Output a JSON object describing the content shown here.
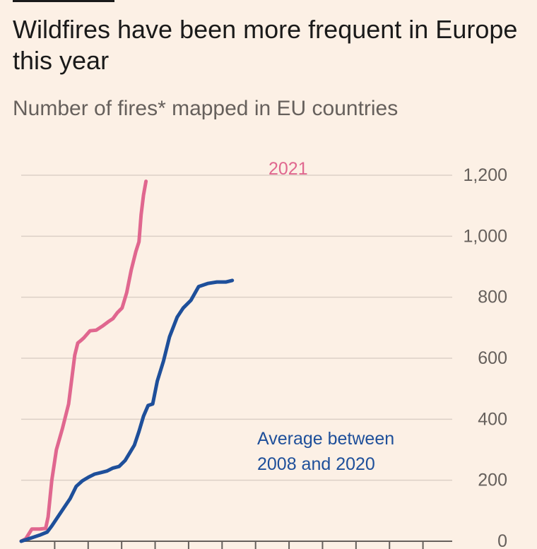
{
  "header": {
    "title": "Wildfires have been more frequent in Europe this year",
    "subtitle": "Number of fires* mapped in EU countries"
  },
  "colors": {
    "background": "#fcf0e5",
    "series_2021": "#e0678f",
    "series_average": "#1e4f9a"
  },
  "chart_data": {
    "type": "line",
    "title": "Wildfires have been more frequent in Europe this year",
    "subtitle": "Number of fires* mapped in EU countries",
    "ylabel": "",
    "xlabel": "",
    "ylim": [
      0,
      1200
    ],
    "yticks": [
      0,
      200,
      400,
      600,
      800,
      1000,
      1200
    ],
    "yticks_labels": [
      "0",
      "200",
      "400",
      "600",
      "800",
      "1,000",
      "1,200"
    ],
    "y_axis_position": "right",
    "grid": true,
    "x_ticks_count": 13,
    "series": [
      {
        "name": "2021",
        "x": [
          0,
          0.15,
          0.35,
          0.6,
          0.8,
          0.88,
          1.0,
          1.15,
          1.35,
          1.55,
          1.75,
          1.85,
          1.95,
          2.05,
          2.25,
          2.45,
          2.65,
          2.85,
          3.0,
          3.15,
          3.3,
          3.45,
          3.6,
          3.75,
          3.85,
          3.92,
          4.0,
          4.08
        ],
        "y": [
          0,
          8,
          40,
          40,
          42,
          80,
          200,
          300,
          370,
          450,
          610,
          650,
          658,
          667,
          690,
          692,
          705,
          720,
          730,
          750,
          765,
          815,
          890,
          950,
          982,
          1070,
          1135,
          1180
        ]
      },
      {
        "name": "Average between 2008 and 2020",
        "x": [
          0,
          0.3,
          0.6,
          0.85,
          1.0,
          1.2,
          1.4,
          1.6,
          1.8,
          2.0,
          2.2,
          2.4,
          2.6,
          2.8,
          3.0,
          3.2,
          3.4,
          3.55,
          3.7,
          3.85,
          4.0,
          4.15,
          4.3,
          4.45,
          4.65,
          4.85,
          5.1,
          5.3,
          5.55,
          5.8,
          6.1,
          6.4,
          6.7,
          6.9
        ],
        "y": [
          0,
          10,
          20,
          30,
          50,
          80,
          110,
          140,
          180,
          198,
          210,
          220,
          225,
          230,
          240,
          245,
          265,
          290,
          315,
          360,
          410,
          445,
          450,
          525,
          590,
          670,
          735,
          765,
          790,
          835,
          845,
          850,
          850,
          855
        ]
      }
    ],
    "annotations": [
      {
        "text": "2021",
        "series": "2021"
      },
      {
        "text": "Average between",
        "series": "Average between 2008 and 2020"
      },
      {
        "text": "2008 and 2020",
        "series": "Average between 2008 and 2020"
      }
    ]
  }
}
